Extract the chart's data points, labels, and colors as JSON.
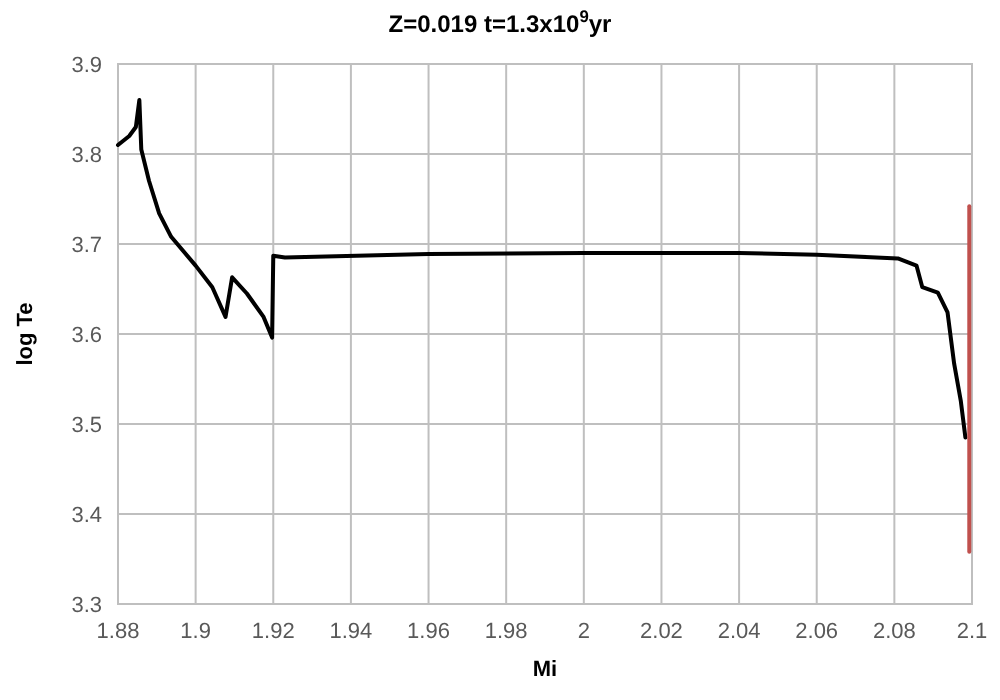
{
  "chart_data": {
    "type": "line",
    "title": "Z=0.019   t=1.3x10$^{9}$yr",
    "xlabel": "Mi",
    "ylabel": "log Te",
    "xlim": [
      1.88,
      2.1
    ],
    "ylim": [
      3.3,
      3.9
    ],
    "xticks": [
      1.88,
      1.9,
      1.92,
      1.94,
      1.96,
      1.98,
      2,
      2.02,
      2.04,
      2.06,
      2.08,
      2.1
    ],
    "yticks": [
      3.3,
      3.4,
      3.5,
      3.6,
      3.7,
      3.8,
      3.9
    ],
    "grid": true,
    "series": [
      {
        "color": "#000000",
        "x": [
          1.88,
          1.8829,
          1.8846,
          1.8855,
          1.886,
          1.888,
          1.8906,
          1.8937,
          1.9,
          1.9043,
          1.9077,
          1.9094,
          1.9132,
          1.9175,
          1.9197,
          1.92,
          1.923,
          1.96,
          2,
          2.04,
          2.06,
          2.0809,
          2.0857,
          2.0872,
          2.0912,
          2.0937,
          2.0954,
          2.0971,
          2.0983
        ],
        "values": [
          3.81,
          3.82,
          3.83,
          3.86,
          3.805,
          3.77,
          3.734,
          3.708,
          3.676,
          3.652,
          3.619,
          3.663,
          3.645,
          3.619,
          3.596,
          3.687,
          3.685,
          3.689,
          3.69,
          3.69,
          3.688,
          3.684,
          3.676,
          3.652,
          3.646,
          3.624,
          3.567,
          3.526,
          3.485
        ]
      },
      {
        "color": "#c0504d",
        "x": [
          2.0993,
          2.0993,
          2.0993
        ],
        "values": [
          3.358,
          3.55,
          3.742
        ]
      }
    ]
  }
}
